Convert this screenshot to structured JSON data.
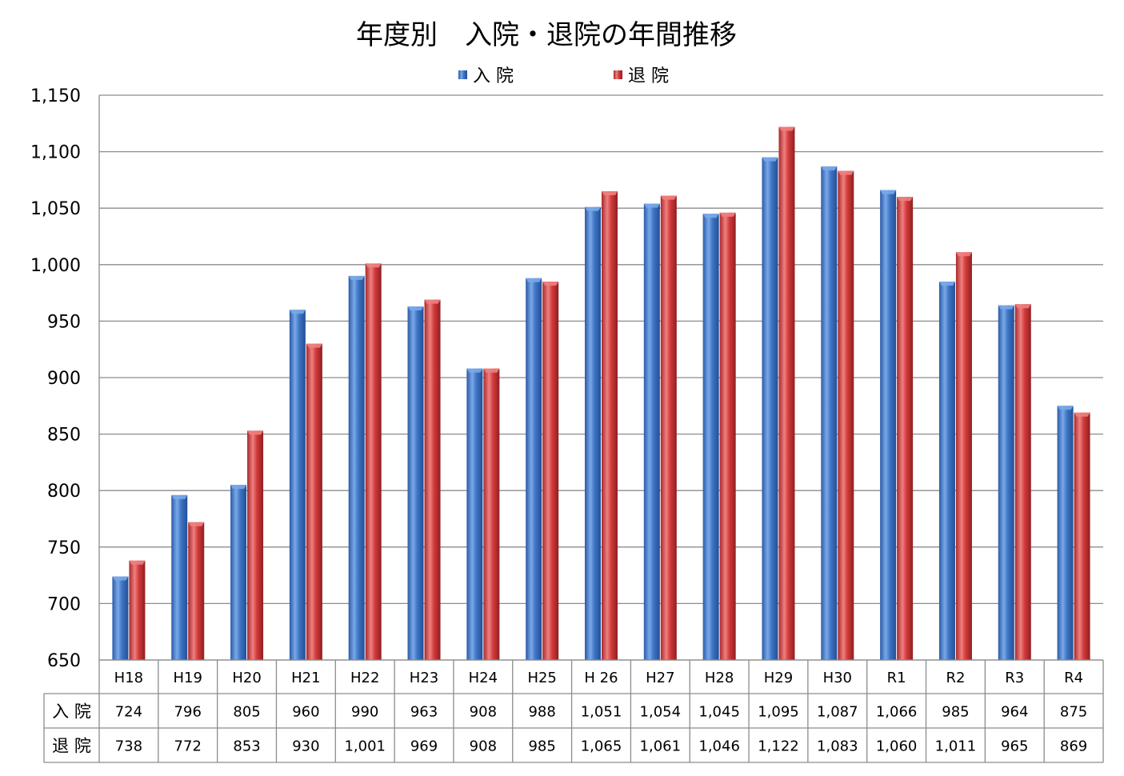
{
  "chart_data": {
    "type": "bar",
    "title": "年度別　入院・退院の年間推移",
    "categories": [
      "H18",
      "H19",
      "H20",
      "H21",
      "H22",
      "H23",
      "H24",
      "H25",
      "H 26",
      "H27",
      "H28",
      "H29",
      "H30",
      "R1",
      "R2",
      "R3",
      "R4"
    ],
    "series": [
      {
        "name": "入 院",
        "table_label": "入 院",
        "color": "#3f78c6",
        "values": [
          724,
          796,
          805,
          960,
          990,
          963,
          908,
          988,
          1051,
          1054,
          1045,
          1095,
          1087,
          1066,
          985,
          964,
          875
        ],
        "labels": [
          "724",
          "796",
          "805",
          "960",
          "990",
          "963",
          "908",
          "988",
          "1,051",
          "1,054",
          "1,045",
          "1,095",
          "1,087",
          "1,066",
          "985",
          "964",
          "875"
        ]
      },
      {
        "name": "退 院",
        "table_label": "退 院",
        "color": "#d23a3a",
        "values": [
          738,
          772,
          853,
          930,
          1001,
          969,
          908,
          985,
          1065,
          1061,
          1046,
          1122,
          1083,
          1060,
          1011,
          965,
          869
        ],
        "labels": [
          "738",
          "772",
          "853",
          "930",
          "1,001",
          "969",
          "908",
          "985",
          "1,065",
          "1,061",
          "1,046",
          "1,122",
          "1,083",
          "1,060",
          "1,011",
          "965",
          "869"
        ]
      }
    ],
    "ylim": [
      650,
      1150
    ],
    "yticks": [
      650,
      700,
      750,
      800,
      850,
      900,
      950,
      1000,
      1050,
      1100,
      1150
    ],
    "ytick_labels": [
      "650",
      "700",
      "750",
      "800",
      "850",
      "900",
      "950",
      "1,000",
      "1,050",
      "1,100",
      "1,150"
    ],
    "grid": true,
    "legend_position": "top-center",
    "data_table": true
  }
}
